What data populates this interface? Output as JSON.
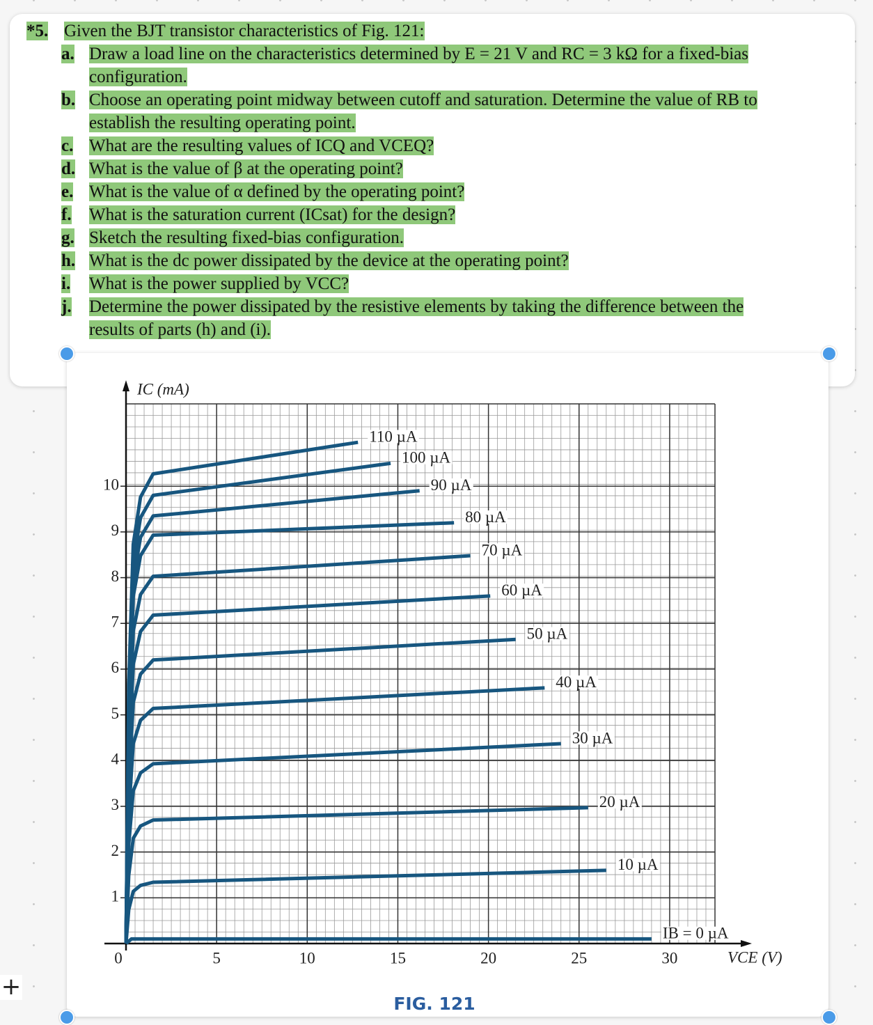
{
  "toolbar": {
    "add": "+"
  },
  "problem": {
    "number": "*5.",
    "intro": "Given the BJT transistor characteristics of Fig. 121:",
    "parts": [
      {
        "letter": "a.",
        "text": "Draw a load line on the characteristics determined by E = 21 V and RC = 3 kΩ for a fixed-bias configuration."
      },
      {
        "letter": "b.",
        "text": "Choose an operating point midway between cutoff and saturation. Determine the value of RB to establish the resulting operating point."
      },
      {
        "letter": "c.",
        "text": "What are the resulting values of ICQ and VCEQ?"
      },
      {
        "letter": "d.",
        "text": "What is the value of β at the operating point?"
      },
      {
        "letter": "e.",
        "text": "What is the value of α defined by the operating point?"
      },
      {
        "letter": "f.",
        "text": "What is the saturation current (ICsat) for the design?"
      },
      {
        "letter": "g.",
        "text": "Sketch the resulting fixed-bias configuration."
      },
      {
        "letter": "h.",
        "text": "What is the dc power dissipated by the device at the operating point?"
      },
      {
        "letter": "i.",
        "text": "What is the power supplied by VCC?"
      },
      {
        "letter": "j.",
        "text": "Determine the power dissipated by the resistive elements by taking the difference between the results of parts (h) and (i)."
      }
    ]
  },
  "figure": {
    "caption": "FIG. 121"
  },
  "chart_data": {
    "type": "line",
    "y_label": "IC (mA)",
    "x_label": "VCE (V)",
    "xlim": [
      0,
      32.5
    ],
    "ylim": [
      0,
      11.8
    ],
    "xticks": [
      0,
      5,
      10,
      15,
      20,
      25,
      30
    ],
    "yticks": [
      1,
      2,
      3,
      4,
      5,
      6,
      7,
      8,
      9,
      10
    ],
    "grid": true,
    "color": "#17567f",
    "series": [
      {
        "name": "110 µA",
        "x": [
          0,
          0.15,
          0.4,
          0.8,
          1.5,
          12.8
        ],
        "values": [
          0,
          5.65,
          8.73,
          9.76,
          10.27,
          10.96
        ]
      },
      {
        "name": "100 µA",
        "x": [
          0,
          0.15,
          0.4,
          0.8,
          1.5,
          14.6
        ],
        "values": [
          0,
          5.39,
          8.33,
          9.31,
          9.8,
          10.5
        ]
      },
      {
        "name": "90 µA",
        "x": [
          0,
          0.15,
          0.4,
          0.8,
          1.5,
          16.2
        ],
        "values": [
          0,
          5.14,
          7.95,
          8.88,
          9.35,
          9.9
        ]
      },
      {
        "name": "80 µA",
        "x": [
          0,
          0.15,
          0.4,
          0.8,
          1.5,
          18.1
        ],
        "values": [
          0,
          4.91,
          7.59,
          8.48,
          8.93,
          9.2
        ]
      },
      {
        "name": "70 µA",
        "x": [
          0,
          0.15,
          0.4,
          0.8,
          1.5,
          19
        ],
        "values": [
          0,
          4.42,
          6.83,
          7.63,
          8.03,
          8.48
        ]
      },
      {
        "name": "60 µA",
        "x": [
          0,
          0.15,
          0.4,
          0.8,
          1.5,
          20.1
        ],
        "values": [
          0,
          3.95,
          6.1,
          6.82,
          7.18,
          7.6
        ]
      },
      {
        "name": "50 µA",
        "x": [
          0,
          0.15,
          0.4,
          0.8,
          1.5,
          21.5
        ],
        "values": [
          0,
          3.41,
          5.27,
          5.89,
          6.2,
          6.65
        ]
      },
      {
        "name": "40 µA",
        "x": [
          0,
          0.15,
          0.4,
          0.8,
          1.5,
          23.1
        ],
        "values": [
          0,
          2.83,
          4.37,
          4.88,
          5.14,
          5.59
        ]
      },
      {
        "name": "30 µA",
        "x": [
          0,
          0.15,
          0.4,
          0.8,
          1.5,
          24
        ],
        "values": [
          0,
          2.16,
          3.34,
          3.73,
          3.93,
          4.37
        ]
      },
      {
        "name": "20 µA",
        "x": [
          0,
          0.15,
          0.4,
          0.8,
          1.5,
          25.5
        ],
        "values": [
          0,
          1.49,
          2.3,
          2.57,
          2.7,
          2.97
        ]
      },
      {
        "name": "10 µA",
        "x": [
          0,
          0.15,
          0.4,
          0.8,
          1.5,
          26.5
        ],
        "values": [
          0,
          0.74,
          1.14,
          1.27,
          1.34,
          1.6
        ]
      },
      {
        "name": "IB = 0 µA",
        "x": [
          0,
          0.3,
          29
        ],
        "values": [
          0,
          0.1,
          0.1
        ]
      }
    ]
  }
}
